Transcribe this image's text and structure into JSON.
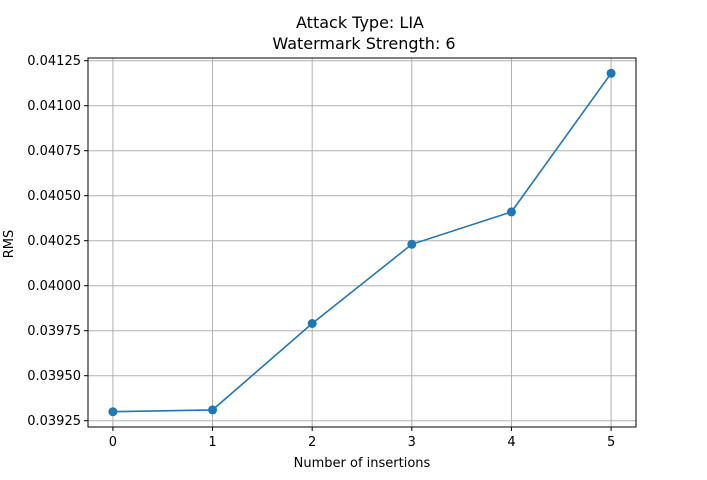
{
  "chart_data": {
    "type": "line",
    "title": "Attack Type: LIA",
    "subtitle": "Watermark Strength: 6",
    "xlabel": "Number of insertions",
    "ylabel": "RMS",
    "x": [
      0,
      1,
      2,
      3,
      4,
      5
    ],
    "series": [
      {
        "values": [
          0.0393,
          0.03931,
          0.03979,
          0.04023,
          0.04041,
          0.04118
        ]
      }
    ],
    "xlim": [
      -0.25,
      5.25
    ],
    "ylim": [
      0.039215,
      0.041265
    ],
    "xticks": [
      "0",
      "1",
      "2",
      "3",
      "4",
      "5"
    ],
    "yticks": [
      "0.03925",
      "0.03950",
      "0.03975",
      "0.04000",
      "0.04025",
      "0.04050",
      "0.04075",
      "0.04100",
      "0.04125"
    ],
    "grid": true,
    "color": "#1f77b4"
  }
}
